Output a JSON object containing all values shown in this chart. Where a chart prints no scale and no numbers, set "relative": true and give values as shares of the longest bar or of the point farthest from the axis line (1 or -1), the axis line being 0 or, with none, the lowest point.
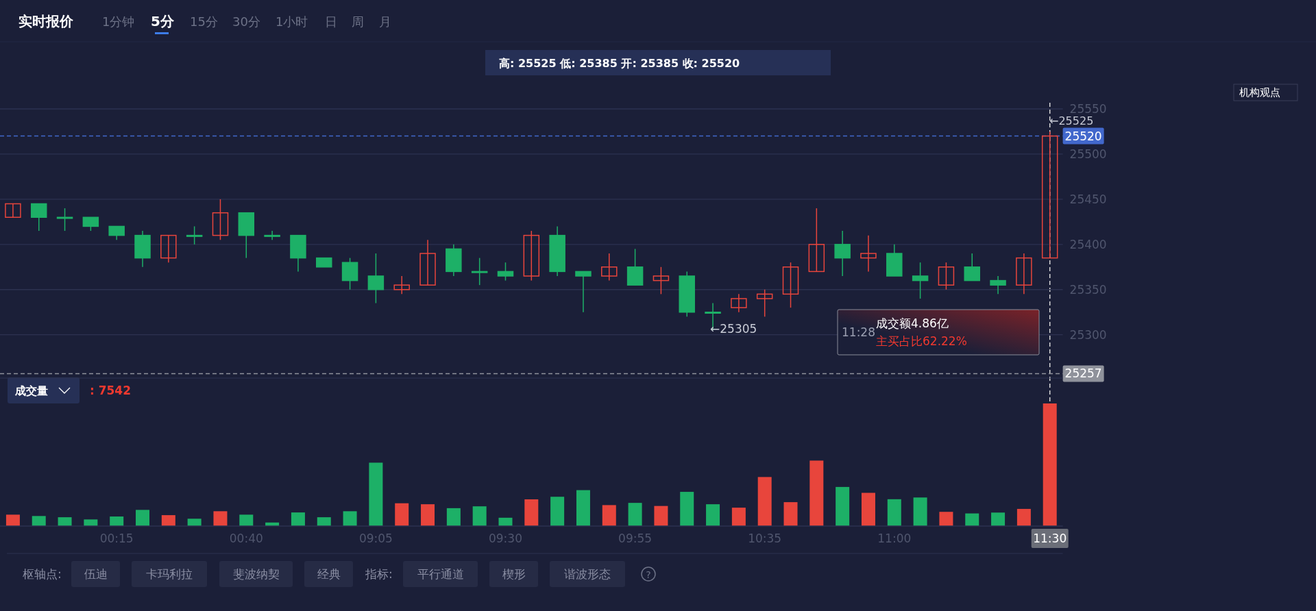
{
  "chart_data": [
    {
      "type": "candlestick",
      "title": "实时报价",
      "subtitle": "高: 25525 低: 25385 开: 25385 收: 25520",
      "categories": [
        null,
        null,
        null,
        null,
        null,
        null,
        null,
        null,
        null,
        null,
        null,
        null,
        null,
        null,
        null,
        null,
        null,
        null,
        null,
        null,
        null,
        null,
        null,
        null,
        null,
        null,
        null,
        null,
        null,
        null,
        null,
        null,
        null,
        null,
        null,
        null,
        null,
        null,
        null,
        null,
        null
      ],
      "ohlc": [
        [
          25430,
          25445,
          25430,
          25445
        ],
        [
          25445,
          25445,
          25415,
          25430
        ],
        [
          25430,
          25440,
          25415,
          25430
        ],
        [
          25430,
          25430,
          25415,
          25420
        ],
        [
          25420,
          25420,
          25405,
          25410
        ],
        [
          25410,
          25415,
          25375,
          25385
        ],
        [
          25385,
          25410,
          25380,
          25410
        ],
        [
          25410,
          25420,
          25400,
          25410
        ],
        [
          25410,
          25450,
          25405,
          25435
        ],
        [
          25435,
          25435,
          25385,
          25410
        ],
        [
          25410,
          25415,
          25405,
          25410
        ],
        [
          25410,
          25410,
          25370,
          25385
        ],
        [
          25385,
          25385,
          25375,
          25375
        ],
        [
          25380,
          25385,
          25350,
          25360
        ],
        [
          25365,
          25390,
          25335,
          25350
        ],
        [
          25350,
          25365,
          25345,
          25355
        ],
        [
          25355,
          25405,
          25355,
          25390
        ],
        [
          25395,
          25400,
          25365,
          25370
        ],
        [
          25370,
          25385,
          25355,
          25370
        ],
        [
          25370,
          25380,
          25360,
          25365
        ],
        [
          25365,
          25415,
          25360,
          25410
        ],
        [
          25410,
          25420,
          25365,
          25370
        ],
        [
          25370,
          25370,
          25325,
          25365
        ],
        [
          25365,
          25390,
          25360,
          25375
        ],
        [
          25375,
          25395,
          25355,
          25355
        ],
        [
          25360,
          25375,
          25345,
          25365
        ],
        [
          25365,
          25370,
          25320,
          25325
        ],
        [
          25325,
          25335,
          25305,
          25325
        ],
        [
          25330,
          25345,
          25325,
          25340
        ],
        [
          25340,
          25350,
          25320,
          25345
        ],
        [
          25345,
          25380,
          25330,
          25375
        ],
        [
          25370,
          25440,
          25370,
          25400
        ],
        [
          25400,
          25415,
          25365,
          25385
        ],
        [
          25385,
          25410,
          25370,
          25390
        ],
        [
          25390,
          25400,
          25365,
          25365
        ],
        [
          25365,
          25380,
          25340,
          25360
        ],
        [
          25355,
          25380,
          25350,
          25375
        ],
        [
          25375,
          25390,
          25360,
          25360
        ],
        [
          25360,
          25365,
          25345,
          25355
        ],
        [
          25355,
          25390,
          25345,
          25385
        ],
        [
          25385,
          25525,
          25385,
          25520
        ]
      ],
      "colors": [
        "#e8453c",
        "#1db067",
        "#1db067",
        "#1db067",
        "#1db067",
        "#1db067",
        "#e8453c",
        "#1db067",
        "#e8453c",
        "#1db067",
        "#1db067",
        "#1db067",
        "#1db067",
        "#1db067",
        "#1db067",
        "#e8453c",
        "#e8453c",
        "#1db067",
        "#1db067",
        "#1db067",
        "#e8453c",
        "#1db067",
        "#1db067",
        "#e8453c",
        "#1db067",
        "#e8453c",
        "#1db067",
        "#1db067",
        "#e8453c",
        "#e8453c",
        "#e8453c",
        "#e8453c",
        "#1db067",
        "#e8453c",
        "#1db067",
        "#1db067",
        "#e8453c",
        "#1db067",
        "#1db067",
        "#e8453c",
        "#e8453c"
      ],
      "ylim": [
        25252,
        25550
      ],
      "yticks": [
        25300,
        25350,
        25400,
        25450,
        25500,
        25550
      ],
      "grid": true,
      "ref_lines": [
        {
          "axis": "y",
          "value": 25520,
          "label": "25520",
          "color": "#4268cc",
          "line_style": "dashed"
        },
        {
          "axis": "y",
          "value": 25257,
          "label": "25257",
          "color": "#8f929b",
          "line_style": "dashed"
        }
      ],
      "annotations": [
        "1分钟",
        "5分",
        "15分",
        "30分",
        "1小时",
        "日",
        "周",
        "月",
        "机构观点",
        "11:28",
        "成交额4.86亿",
        "主买占比62.22%",
        "←25525",
        "←25305"
      ]
    },
    {
      "type": "bar",
      "title": "成交量",
      "relative": true,
      "categories": [
        null,
        null,
        null,
        null,
        "00:15",
        null,
        null,
        null,
        null,
        "00:40",
        null,
        null,
        null,
        null,
        "09:05",
        null,
        null,
        null,
        null,
        "09:30",
        null,
        null,
        null,
        null,
        "09:55",
        null,
        null,
        null,
        null,
        "10:35",
        null,
        null,
        null,
        null,
        "11:00",
        null,
        null,
        null,
        null,
        null,
        "11:30"
      ],
      "ref_lines": [
        {
          "axis": "x",
          "value": "11:30",
          "color": "#d8d8d8",
          "line_style": "dashed"
        }
      ],
      "values": [
        0.093,
        0.082,
        0.072,
        0.054,
        0.078,
        0.132,
        0.089,
        0.06,
        0.121,
        0.093,
        0.029,
        0.111,
        0.072,
        0.121,
        0.517,
        0.186,
        0.178,
        0.146,
        0.161,
        0.068,
        0.218,
        0.239,
        0.293,
        0.171,
        0.189,
        0.164,
        0.279,
        0.178,
        0.15,
        0.4,
        0.195,
        0.534,
        0.319,
        0.271,
        0.219,
        0.233,
        0.116,
        0.103,
        0.11,
        0.14,
        1
      ],
      "colors": [
        "#e8453c",
        "#1db067",
        "#1db067",
        "#1db067",
        "#1db067",
        "#1db067",
        "#e8453c",
        "#1db067",
        "#e8453c",
        "#1db067",
        "#1db067",
        "#1db067",
        "#1db067",
        "#1db067",
        "#1db067",
        "#e8453c",
        "#e8453c",
        "#1db067",
        "#1db067",
        "#1db067",
        "#e8453c",
        "#1db067",
        "#1db067",
        "#e8453c",
        "#1db067",
        "#e8453c",
        "#1db067",
        "#1db067",
        "#e8453c",
        "#e8453c",
        "#e8453c",
        "#e8453c",
        "#1db067",
        "#e8453c",
        "#1db067",
        "#1db067",
        "#e8453c",
        "#1db067",
        "#1db067",
        "#e8453c",
        "#e8453c"
      ],
      "annotations": [
        ": 7542",
        "枢轴点:",
        "伍迪",
        "卡玛利拉",
        "斐波纳契",
        "经典",
        "指标:",
        "平行通道",
        "楔形",
        "谐波形态",
        "?"
      ]
    }
  ]
}
